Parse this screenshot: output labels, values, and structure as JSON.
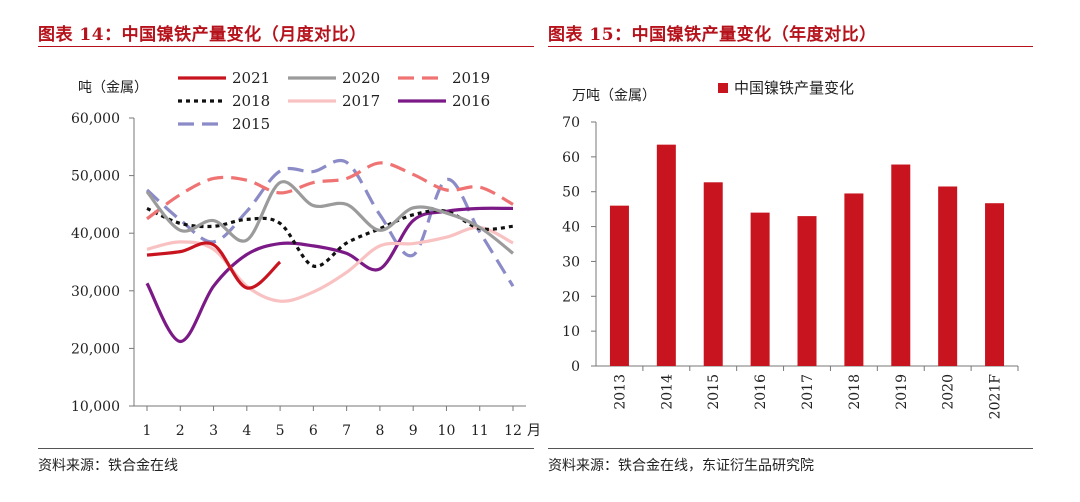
{
  "left": {
    "title": "图表 14：中国镍铁产量变化（月度对比）",
    "source": "资料来源：铁合金在线"
  },
  "right": {
    "title": "图表 15：中国镍铁产量变化（年度对比）",
    "source": "资料来源：铁合金在线，东证衍生品研究院"
  },
  "chart_data": [
    {
      "type": "line",
      "ylabel": "吨（金属）",
      "xlabel": "",
      "x_unit_label": "月",
      "x": [
        1,
        2,
        3,
        4,
        5,
        6,
        7,
        8,
        9,
        10,
        11,
        12
      ],
      "x_tick_labels": [
        "1",
        "2",
        "3",
        "4",
        "5",
        "6",
        "7",
        "8",
        "9",
        "10",
        "11",
        "12"
      ],
      "ylim": [
        10000,
        60000
      ],
      "y_ticks": [
        10000,
        20000,
        30000,
        40000,
        50000,
        60000
      ],
      "y_tick_labels": [
        "10,000",
        "20,000",
        "30,000",
        "40,000",
        "50,000",
        "60,000"
      ],
      "grid": false,
      "legend_position": "top",
      "series": [
        {
          "name": "2021",
          "color": "#c8141e",
          "dash": "solid",
          "values": [
            36200,
            36800,
            38000,
            30500,
            35000,
            null,
            null,
            null,
            null,
            null,
            null,
            null
          ]
        },
        {
          "name": "2020",
          "color": "#9b9b9b",
          "dash": "solid",
          "values": [
            47200,
            40500,
            42200,
            38800,
            48800,
            44800,
            45000,
            40500,
            44400,
            43500,
            41000,
            36500
          ]
        },
        {
          "name": "2019",
          "color": "#f07373",
          "dash": "longdash",
          "values": [
            42500,
            46700,
            49500,
            49200,
            47000,
            48800,
            49500,
            52200,
            50200,
            47500,
            48000,
            45000
          ]
        },
        {
          "name": "2018",
          "color": "#111111",
          "dash": "dot",
          "values": [
            44300,
            41700,
            41200,
            42400,
            41700,
            34300,
            38300,
            40800,
            43200,
            43800,
            40800,
            41200
          ]
        },
        {
          "name": "2017",
          "color": "#f9c2c2",
          "dash": "solid",
          "values": [
            37200,
            38500,
            37200,
            30800,
            28200,
            29800,
            33200,
            37800,
            38200,
            39300,
            41000,
            38300
          ]
        },
        {
          "name": "2016",
          "color": "#7b1a86",
          "dash": "solid",
          "values": [
            31300,
            21200,
            30800,
            36300,
            38200,
            37800,
            36500,
            33800,
            42200,
            43800,
            44300,
            44300
          ]
        },
        {
          "name": "2015",
          "color": "#8b8bc8",
          "dash": "longdash",
          "values": [
            47500,
            42300,
            38500,
            43800,
            50800,
            50700,
            52300,
            43200,
            36200,
            49300,
            40200,
            30800
          ]
        }
      ]
    },
    {
      "type": "bar",
      "ylabel": "万吨（金属）",
      "xlabel": "",
      "categories": [
        "2013",
        "2014",
        "2015",
        "2016",
        "2017",
        "2018",
        "2019",
        "2020",
        "2021F"
      ],
      "ylim": [
        0,
        70
      ],
      "y_ticks": [
        0,
        10,
        20,
        30,
        40,
        50,
        60,
        70
      ],
      "y_tick_labels": [
        "0",
        "10",
        "20",
        "30",
        "40",
        "50",
        "60",
        "70"
      ],
      "grid": false,
      "legend_position": "top",
      "series": [
        {
          "name": "中国镍铁产量变化",
          "color": "#c8141e",
          "values": [
            46,
            63.5,
            52.7,
            44,
            43,
            49.5,
            57.8,
            51.5,
            46.7
          ]
        }
      ]
    }
  ]
}
